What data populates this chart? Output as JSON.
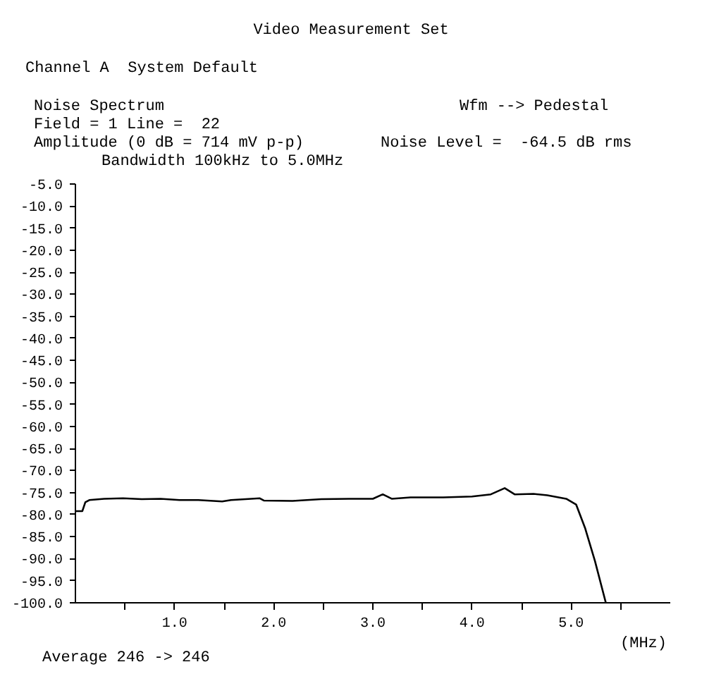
{
  "chart_data": {
    "type": "line",
    "title": "Video Measurement Set",
    "xlabel": "(MHz)",
    "annotations": [
      "Channel A  System Default",
      "Noise Spectrum",
      "Wfm --> Pedestal",
      "Field = 1 Line =  22",
      "Amplitude (0 dB = 714 mV p-p)",
      "Noise Level =  -64.5 dB rms",
      "Bandwidth 100kHz to 5.0MHz",
      "Average 246 -> 246"
    ],
    "x": [
      0,
      0.07,
      0.1,
      0.14,
      0.29,
      0.48,
      0.67,
      0.86,
      1.05,
      1.24,
      1.48,
      1.57,
      1.86,
      1.9,
      2.19,
      2.48,
      2.76,
      3.0,
      3.1,
      3.19,
      3.38,
      3.71,
      4.0,
      4.19,
      4.33,
      4.43,
      4.62,
      4.76,
      4.95,
      5.05,
      5.14,
      5.24,
      5.35
    ],
    "series": [
      {
        "color": "#000000",
        "values": [
          -79.2,
          -79.2,
          -77.2,
          -76.7,
          -76.4,
          -76.3,
          -76.5,
          -76.4,
          -76.7,
          -76.7,
          -77.0,
          -76.7,
          -76.3,
          -76.8,
          -76.9,
          -76.5,
          -76.4,
          -76.4,
          -75.4,
          -76.4,
          -76.1,
          -76.1,
          -75.9,
          -75.4,
          -74.0,
          -75.4,
          -75.3,
          -75.6,
          -76.4,
          -77.7,
          -83.0,
          -90.5,
          -100.0
        ]
      }
    ],
    "xlim": [
      0,
      6.0
    ],
    "xticks": [
      {
        "value": 0.5,
        "label": null
      },
      {
        "value": 1,
        "label": "1.0"
      },
      {
        "value": 1.5,
        "label": null
      },
      {
        "value": 2,
        "label": "2.0"
      },
      {
        "value": 2.5,
        "label": null
      },
      {
        "value": 3,
        "label": "3.0"
      },
      {
        "value": 3.5,
        "label": null
      },
      {
        "value": 4,
        "label": "4.0"
      },
      {
        "value": 4.5,
        "label": null
      },
      {
        "value": 5,
        "label": "5.0"
      },
      {
        "value": 5.5,
        "label": null
      }
    ],
    "ylim": [
      -100,
      -5
    ],
    "yticks": [
      {
        "value": -5,
        "label": "-5.0"
      },
      {
        "value": -10,
        "label": "-10.0"
      },
      {
        "value": -15,
        "label": "-15.0"
      },
      {
        "value": -20,
        "label": "-20.0"
      },
      {
        "value": -25,
        "label": "-25.0"
      },
      {
        "value": -30,
        "label": "-30.0"
      },
      {
        "value": -35,
        "label": "-35.0"
      },
      {
        "value": -40,
        "label": "-40.0"
      },
      {
        "value": -45,
        "label": "-45.0"
      },
      {
        "value": -50,
        "label": "-50.0"
      },
      {
        "value": -55,
        "label": "-55.0"
      },
      {
        "value": -60,
        "label": "-60.0"
      },
      {
        "value": -65,
        "label": "-65.0"
      },
      {
        "value": -70,
        "label": "-70.0"
      },
      {
        "value": -75,
        "label": "-75.0"
      },
      {
        "value": -80,
        "label": "-80.0"
      },
      {
        "value": -85,
        "label": "-85.0"
      },
      {
        "value": -90,
        "label": "-90.0"
      },
      {
        "value": -95,
        "label": "-95.0"
      },
      {
        "value": -100,
        "label": "-100.0"
      }
    ],
    "grid": false,
    "marker": "none",
    "line_style": "solid"
  }
}
